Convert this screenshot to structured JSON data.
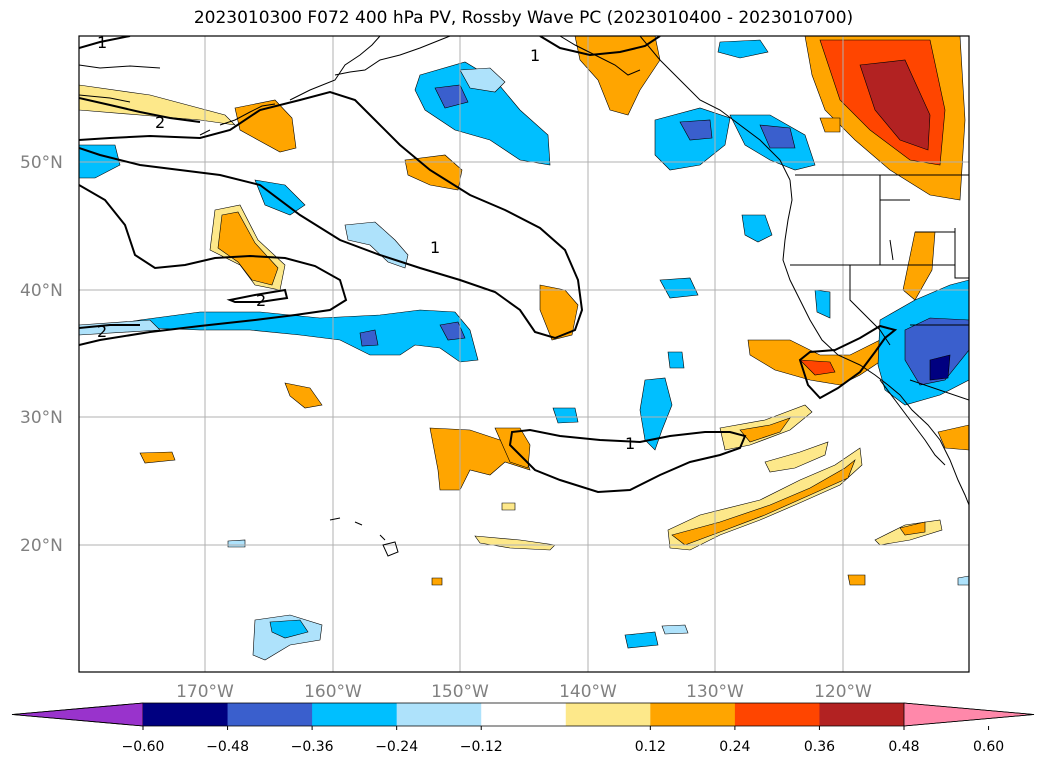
{
  "title": "2023010300 F072 400 hPa PV, Rossby Wave PC (2023010400 - 2023010700)",
  "map": {
    "lat_labels": [
      "50°N",
      "40°N",
      "30°N",
      "20°N"
    ],
    "lon_labels": [
      "170°W",
      "160°W",
      "150°W",
      "140°W",
      "130°W",
      "120°W"
    ],
    "contour_labels": [
      "1",
      "1",
      "1",
      "1",
      "2",
      "2",
      "2"
    ]
  },
  "colors": {
    "neg_extend": "#9933cc",
    "neg": [
      "#000080",
      "#3a5fcd",
      "#00bfff",
      "#aee2fb"
    ],
    "zero": "#ffffff",
    "pos": [
      "#fde88a",
      "#ffa500",
      "#ff4500",
      "#b22222"
    ],
    "pos_extend": "#ff88aa"
  },
  "colorbar": {
    "labels": [
      "−0.60",
      "−0.48",
      "−0.36",
      "−0.24",
      "−0.12",
      "0.12",
      "0.24",
      "0.36",
      "0.48",
      "0.60"
    ]
  }
}
